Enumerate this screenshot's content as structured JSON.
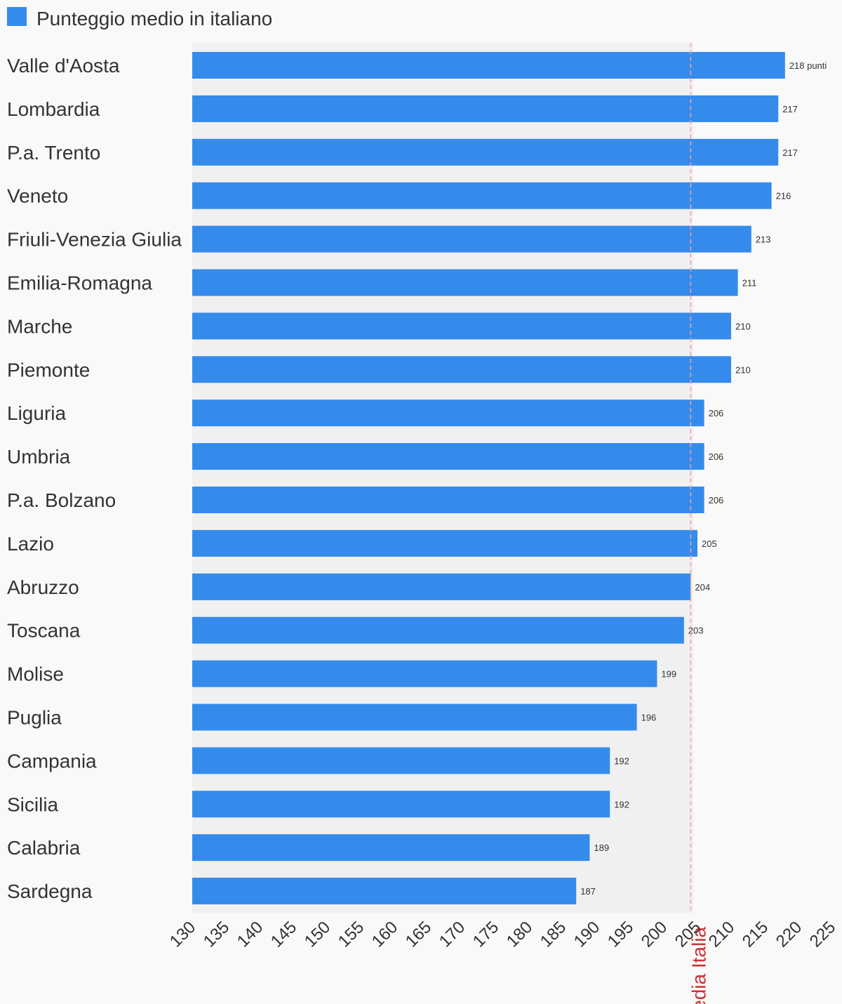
{
  "chart_data": {
    "type": "bar",
    "orientation": "horizontal",
    "categories": [
      "Valle d'Aosta",
      "Lombardia",
      "P.a. Trento",
      "Veneto",
      "Friuli-Venezia Giulia",
      "Emilia-Romagna",
      "Marche",
      "Piemonte",
      "Liguria",
      "Umbria",
      "P.a. Bolzano",
      "Lazio",
      "Abruzzo",
      "Toscana",
      "Molise",
      "Puglia",
      "Campania",
      "Sicilia",
      "Calabria",
      "Sardegna"
    ],
    "series": [
      {
        "name": "Punteggio medio in italiano",
        "values": [
          218,
          217,
          217,
          216,
          213,
          211,
          210,
          210,
          206,
          206,
          206,
          205,
          204,
          203,
          199,
          196,
          192,
          192,
          189,
          187
        ],
        "color": "#348bec"
      }
    ],
    "data_labels": [
      "218 punti",
      "217",
      "217",
      "216",
      "213",
      "211",
      "210",
      "210",
      "206",
      "206",
      "206",
      "205",
      "204",
      "203",
      "199",
      "196",
      "192",
      "192",
      "189",
      "187"
    ],
    "x_ticks": [
      "130",
      "135",
      "140",
      "145",
      "150",
      "155",
      "160",
      "165",
      "170",
      "175",
      "180",
      "185",
      "190",
      "195",
      "200",
      "205",
      "210",
      "215",
      "220",
      "225"
    ],
    "xlim": [
      130,
      225
    ],
    "reference_line": {
      "label": "Media Italia",
      "value": 204,
      "color": "#cc3333"
    },
    "legend": {
      "position": "top-left",
      "label": "Punteggio medio in italiano"
    },
    "grid": false,
    "title": "",
    "xlabel": "",
    "ylabel": ""
  }
}
